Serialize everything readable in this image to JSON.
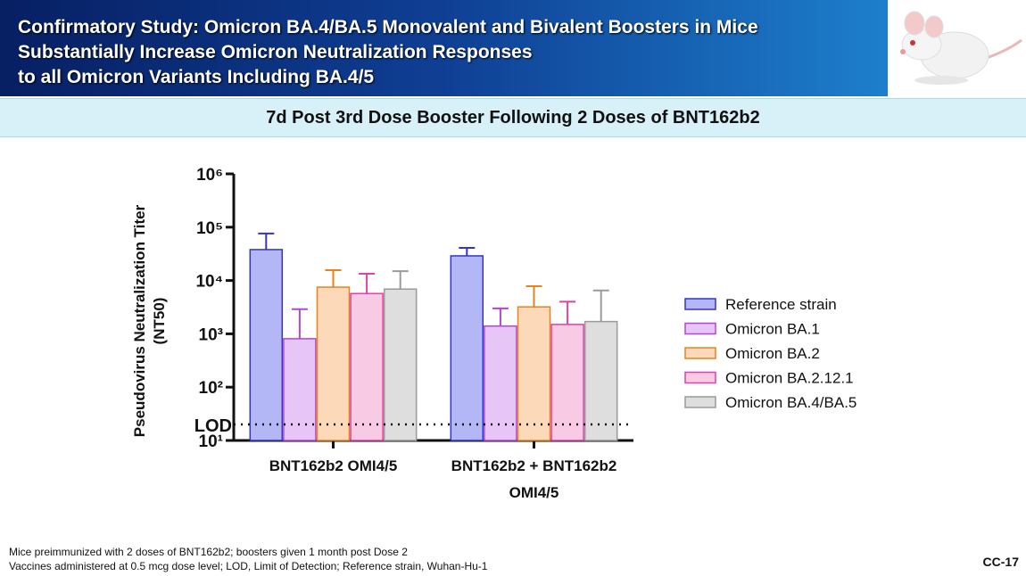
{
  "header": {
    "title_lines": [
      "Confirmatory Study: Omicron BA.4/BA.5 Monovalent and Bivalent Boosters in Mice",
      "Substantially Increase Omicron Neutralization Responses",
      "to all Omicron Variants Including BA.4/5"
    ]
  },
  "chart_data": {
    "type": "bar",
    "title": "7d Post 3rd Dose Booster Following 2 Doses of BNT162b2",
    "ylabel": [
      "Pseudovirus Neutralization Titer",
      "(NT50)"
    ],
    "log_scale": true,
    "categories": [
      "BNT162b2 OMI4/5",
      "BNT162b2 + BNT162b2 OMI4/5"
    ],
    "ylim": [
      10,
      1000000
    ],
    "yticks": [
      {
        "value": 10,
        "label": "10¹"
      },
      {
        "value": 100,
        "label": "10²"
      },
      {
        "value": 1000,
        "label": "10³"
      },
      {
        "value": 10000,
        "label": "10⁴"
      },
      {
        "value": 100000,
        "label": "10⁵"
      },
      {
        "value": 1000000,
        "label": "10⁶"
      }
    ],
    "reference_line": {
      "label": "LOD",
      "value": 20
    },
    "series": [
      {
        "name": "Reference strain",
        "color": "#b3b7f5",
        "edge": "#3434c8",
        "values": [
          38000,
          29000
        ],
        "errors": [
          38000,
          12000
        ]
      },
      {
        "name": "Omicron BA.1",
        "color": "#e7c5f6",
        "edge": "#b045d8",
        "values": [
          810,
          1400
        ],
        "errors": [
          2090,
          1600
        ]
      },
      {
        "name": "Omicron BA.2",
        "color": "#fcd9b9",
        "edge": "#e8821a",
        "values": [
          7500,
          3200
        ],
        "errors": [
          8100,
          4600
        ]
      },
      {
        "name": "Omicron BA.2.12.1",
        "color": "#f9cae4",
        "edge": "#e040a8",
        "values": [
          5700,
          1500
        ],
        "errors": [
          7700,
          2500
        ]
      },
      {
        "name": "Omicron BA.4/BA.5",
        "color": "#dedede",
        "edge": "#9a9a9a",
        "values": [
          6900,
          1700
        ],
        "errors": [
          8100,
          4800
        ]
      }
    ]
  },
  "footnotes": [
    "Mice preimmunized with 2 doses of BNT162b2; boosters given 1 month post Dose 2",
    "Vaccines administered at 0.5 mcg dose level; LOD, Limit of Detection; Reference strain, Wuhan-Hu-1"
  ],
  "page_number": "CC-17"
}
